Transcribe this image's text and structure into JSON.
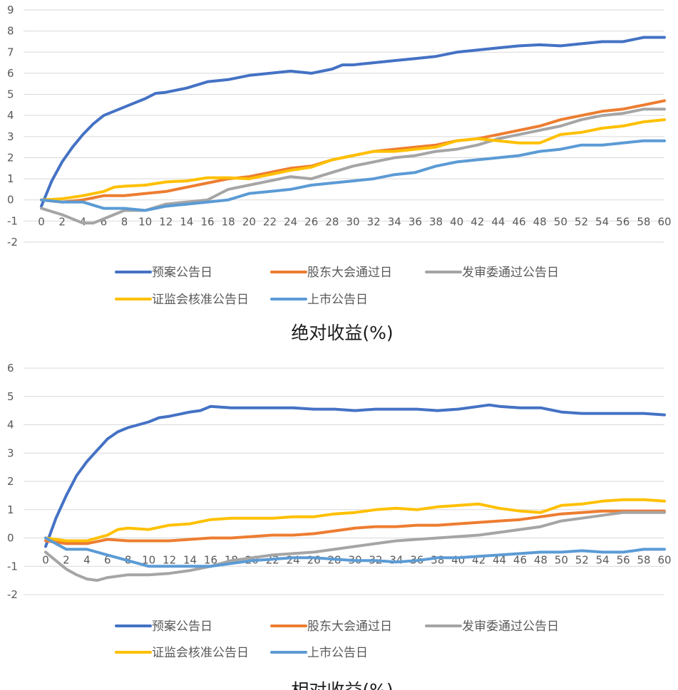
{
  "chart_data": [
    {
      "type": "line",
      "title": "绝对收益(%)",
      "ylim": [
        -2,
        9
      ],
      "yticks": [
        -2,
        -1,
        0,
        1,
        2,
        3,
        4,
        5,
        6,
        7,
        8,
        9
      ],
      "xlim": [
        0,
        60
      ],
      "xticks": [
        0,
        2,
        4,
        6,
        8,
        10,
        12,
        14,
        16,
        18,
        20,
        22,
        24,
        26,
        28,
        30,
        32,
        34,
        36,
        38,
        40,
        42,
        44,
        46,
        48,
        50,
        52,
        54,
        56,
        58,
        60
      ],
      "grid": true,
      "legend_position": "bottom",
      "series": [
        {
          "name": "预案公告日",
          "color": "#4472c4",
          "x": [
            0,
            1,
            2,
            3,
            4,
            5,
            6,
            8,
            10,
            11,
            12,
            14,
            16,
            18,
            20,
            22,
            24,
            26,
            28,
            29,
            30,
            32,
            34,
            36,
            38,
            40,
            42,
            44,
            46,
            48,
            50,
            52,
            54,
            56,
            58,
            60
          ],
          "y": [
            -0.3,
            0.9,
            1.8,
            2.5,
            3.1,
            3.6,
            4.0,
            4.4,
            4.8,
            5.05,
            5.1,
            5.3,
            5.6,
            5.7,
            5.9,
            6.0,
            6.1,
            6.0,
            6.2,
            6.4,
            6.4,
            6.5,
            6.6,
            6.7,
            6.8,
            7.0,
            7.1,
            7.2,
            7.3,
            7.35,
            7.3,
            7.4,
            7.5,
            7.5,
            7.7,
            7.7
          ]
        },
        {
          "name": "股东大会通过日",
          "color": "#ed7d31",
          "x": [
            0,
            2,
            4,
            6,
            8,
            10,
            12,
            14,
            16,
            18,
            20,
            22,
            24,
            26,
            28,
            30,
            32,
            34,
            36,
            38,
            40,
            42,
            44,
            46,
            48,
            50,
            52,
            54,
            56,
            58,
            60
          ],
          "y": [
            0,
            -0.1,
            0.0,
            0.2,
            0.2,
            0.3,
            0.4,
            0.6,
            0.8,
            1.0,
            1.1,
            1.3,
            1.5,
            1.6,
            1.9,
            2.1,
            2.3,
            2.4,
            2.5,
            2.6,
            2.8,
            2.9,
            3.1,
            3.3,
            3.5,
            3.8,
            4.0,
            4.2,
            4.3,
            4.5,
            4.7
          ]
        },
        {
          "name": "发审委通过公告日",
          "color": "#a5a5a5",
          "x": [
            0,
            2,
            4,
            5,
            6,
            8,
            10,
            12,
            14,
            16,
            18,
            20,
            22,
            24,
            26,
            28,
            30,
            32,
            34,
            36,
            38,
            40,
            42,
            44,
            46,
            48,
            50,
            52,
            54,
            56,
            58,
            60
          ],
          "y": [
            -0.4,
            -0.7,
            -1.1,
            -1.1,
            -0.9,
            -0.5,
            -0.5,
            -0.2,
            -0.1,
            0.0,
            0.5,
            0.7,
            0.9,
            1.1,
            1.0,
            1.3,
            1.6,
            1.8,
            2.0,
            2.1,
            2.3,
            2.4,
            2.6,
            2.9,
            3.1,
            3.3,
            3.5,
            3.8,
            4.0,
            4.1,
            4.3,
            4.3
          ]
        },
        {
          "name": "证监会核准公告日",
          "color": "#ffc000",
          "x": [
            0,
            2,
            4,
            6,
            7,
            8,
            10,
            12,
            14,
            16,
            18,
            20,
            22,
            24,
            26,
            28,
            30,
            32,
            34,
            36,
            38,
            40,
            42,
            44,
            46,
            48,
            50,
            52,
            54,
            56,
            58,
            60
          ],
          "y": [
            0,
            0.05,
            0.2,
            0.4,
            0.6,
            0.65,
            0.7,
            0.85,
            0.9,
            1.05,
            1.05,
            1.0,
            1.2,
            1.4,
            1.55,
            1.9,
            2.1,
            2.3,
            2.3,
            2.4,
            2.5,
            2.8,
            2.9,
            2.8,
            2.7,
            2.7,
            3.1,
            3.2,
            3.4,
            3.5,
            3.7,
            3.8
          ]
        },
        {
          "name": "上市公告日",
          "color": "#5b9bd5",
          "x": [
            0,
            2,
            4,
            6,
            8,
            10,
            12,
            14,
            16,
            18,
            20,
            22,
            24,
            26,
            28,
            30,
            32,
            34,
            36,
            38,
            40,
            42,
            44,
            46,
            48,
            50,
            52,
            54,
            56,
            58,
            60
          ],
          "y": [
            0,
            -0.1,
            -0.1,
            -0.4,
            -0.4,
            -0.5,
            -0.3,
            -0.2,
            -0.1,
            0.0,
            0.3,
            0.4,
            0.5,
            0.7,
            0.8,
            0.9,
            1.0,
            1.2,
            1.3,
            1.6,
            1.8,
            1.9,
            2.0,
            2.1,
            2.3,
            2.4,
            2.6,
            2.6,
            2.7,
            2.8,
            2.8
          ]
        }
      ]
    },
    {
      "type": "line",
      "title": "相对收益(%)",
      "ylim": [
        -2,
        6
      ],
      "yticks": [
        -2,
        -1,
        0,
        1,
        2,
        3,
        4,
        5,
        6
      ],
      "xlim": [
        0,
        60
      ],
      "xticks": [
        0,
        2,
        4,
        6,
        8,
        10,
        12,
        14,
        16,
        18,
        20,
        22,
        24,
        26,
        28,
        30,
        32,
        34,
        36,
        38,
        40,
        42,
        44,
        46,
        48,
        50,
        52,
        54,
        56,
        58,
        60
      ],
      "grid": true,
      "legend_position": "bottom",
      "series": [
        {
          "name": "预案公告日",
          "color": "#4472c4",
          "x": [
            0,
            1,
            2,
            3,
            4,
            5,
            6,
            7,
            8,
            10,
            11,
            12,
            14,
            15,
            16,
            18,
            20,
            22,
            24,
            26,
            28,
            30,
            32,
            34,
            36,
            38,
            40,
            42,
            43,
            44,
            46,
            48,
            50,
            52,
            54,
            56,
            58,
            60
          ],
          "y": [
            -0.3,
            0.7,
            1.5,
            2.2,
            2.7,
            3.1,
            3.5,
            3.75,
            3.9,
            4.1,
            4.25,
            4.3,
            4.45,
            4.5,
            4.65,
            4.6,
            4.6,
            4.6,
            4.6,
            4.55,
            4.55,
            4.5,
            4.55,
            4.55,
            4.55,
            4.5,
            4.55,
            4.65,
            4.7,
            4.65,
            4.6,
            4.6,
            4.45,
            4.4,
            4.4,
            4.4,
            4.4,
            4.35
          ]
        },
        {
          "name": "股东大会通过日",
          "color": "#ed7d31",
          "x": [
            0,
            2,
            4,
            6,
            8,
            10,
            12,
            14,
            16,
            18,
            20,
            22,
            24,
            26,
            28,
            30,
            32,
            34,
            36,
            38,
            40,
            42,
            44,
            46,
            48,
            50,
            52,
            54,
            56,
            58,
            60
          ],
          "y": [
            -0.1,
            -0.2,
            -0.2,
            -0.05,
            -0.1,
            -0.1,
            -0.1,
            -0.05,
            0.0,
            0.0,
            0.05,
            0.1,
            0.1,
            0.15,
            0.25,
            0.35,
            0.4,
            0.4,
            0.45,
            0.45,
            0.5,
            0.55,
            0.6,
            0.65,
            0.75,
            0.85,
            0.9,
            0.95,
            0.95,
            0.95,
            0.95
          ]
        },
        {
          "name": "发审委通过公告日",
          "color": "#a5a5a5",
          "x": [
            0,
            2,
            3,
            4,
            5,
            6,
            8,
            10,
            12,
            14,
            16,
            18,
            20,
            22,
            24,
            26,
            28,
            30,
            32,
            34,
            36,
            38,
            40,
            42,
            44,
            46,
            48,
            50,
            52,
            54,
            56,
            58,
            60
          ],
          "y": [
            -0.5,
            -1.1,
            -1.3,
            -1.45,
            -1.5,
            -1.4,
            -1.3,
            -1.3,
            -1.25,
            -1.15,
            -1.0,
            -0.8,
            -0.7,
            -0.6,
            -0.55,
            -0.5,
            -0.4,
            -0.3,
            -0.2,
            -0.1,
            -0.05,
            0.0,
            0.05,
            0.1,
            0.2,
            0.3,
            0.4,
            0.6,
            0.7,
            0.8,
            0.9,
            0.9,
            0.9
          ]
        },
        {
          "name": "证监会核准公告日",
          "color": "#ffc000",
          "x": [
            0,
            2,
            4,
            6,
            7,
            8,
            10,
            12,
            14,
            16,
            18,
            20,
            22,
            24,
            26,
            28,
            30,
            32,
            34,
            36,
            38,
            40,
            42,
            44,
            46,
            48,
            50,
            52,
            54,
            56,
            58,
            60
          ],
          "y": [
            0,
            -0.1,
            -0.1,
            0.1,
            0.3,
            0.35,
            0.3,
            0.45,
            0.5,
            0.65,
            0.7,
            0.7,
            0.7,
            0.75,
            0.75,
            0.85,
            0.9,
            1.0,
            1.05,
            1.0,
            1.1,
            1.15,
            1.2,
            1.05,
            0.95,
            0.9,
            1.15,
            1.2,
            1.3,
            1.35,
            1.35,
            1.3
          ]
        },
        {
          "name": "上市公告日",
          "color": "#5b9bd5",
          "x": [
            0,
            2,
            4,
            6,
            8,
            10,
            12,
            14,
            16,
            18,
            20,
            22,
            24,
            26,
            28,
            30,
            32,
            34,
            36,
            38,
            40,
            42,
            44,
            46,
            48,
            50,
            52,
            54,
            56,
            58,
            60
          ],
          "y": [
            0,
            -0.4,
            -0.4,
            -0.6,
            -0.8,
            -1.0,
            -1.0,
            -1.0,
            -1.0,
            -0.9,
            -0.8,
            -0.75,
            -0.7,
            -0.7,
            -0.75,
            -0.8,
            -0.8,
            -0.85,
            -0.8,
            -0.7,
            -0.7,
            -0.65,
            -0.6,
            -0.55,
            -0.5,
            -0.5,
            -0.45,
            -0.5,
            -0.5,
            -0.4,
            -0.4
          ]
        }
      ]
    }
  ]
}
